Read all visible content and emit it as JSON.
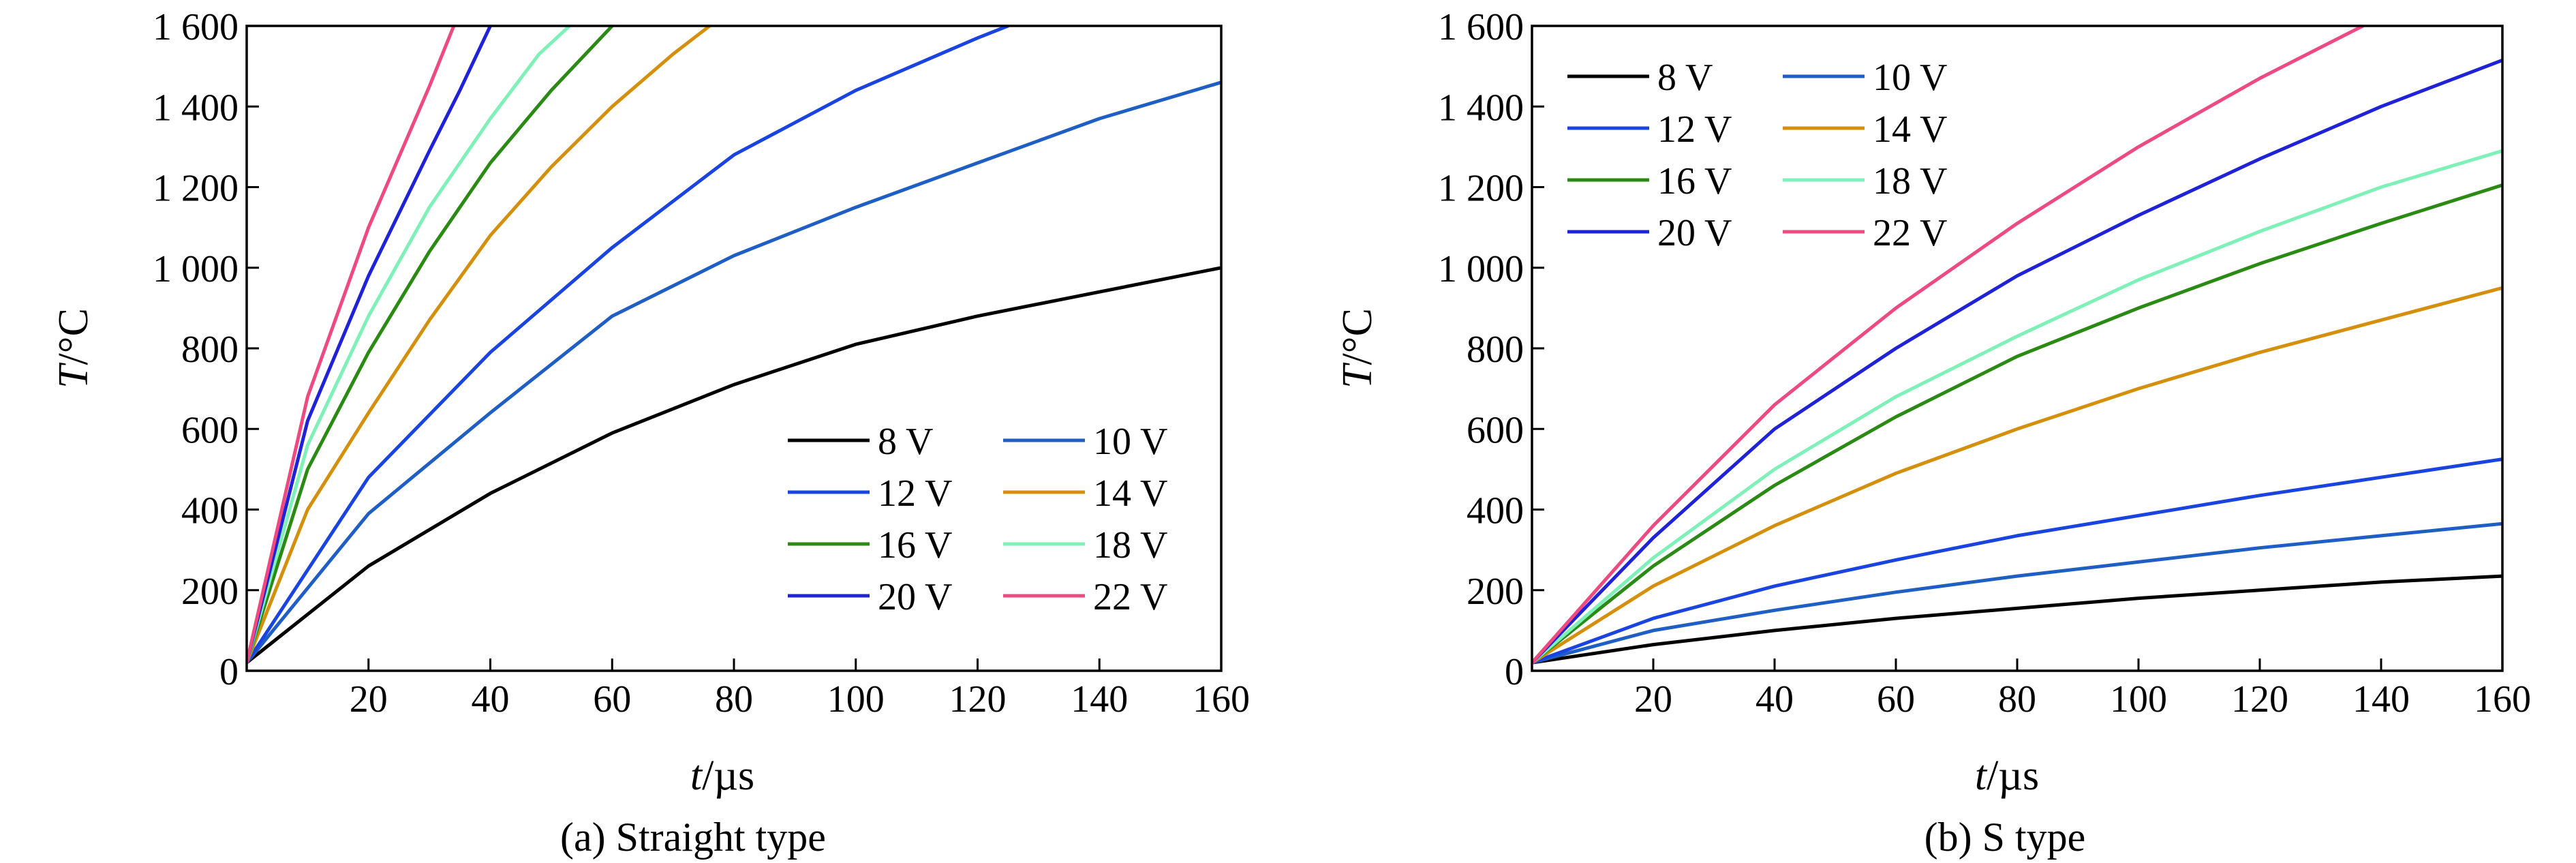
{
  "chart_data": [
    {
      "type": "line",
      "caption": "(a) Straight type",
      "ylabel": "T/°C",
      "ylabel_var": "T",
      "ylabel_unit": "/°C",
      "xlabel": "t/µs",
      "xlabel_var": "t",
      "xlabel_unit": "/µs",
      "xlim": [
        0,
        160
      ],
      "ylim": [
        0,
        1600
      ],
      "xticks": [
        20,
        40,
        60,
        80,
        100,
        120,
        140,
        160
      ],
      "yticks": [
        0,
        200,
        400,
        600,
        800,
        1000,
        1200,
        1400,
        1600
      ],
      "xtick_labels": [
        "20",
        "40",
        "60",
        "80",
        "100",
        "120",
        "140",
        "160"
      ],
      "ytick_labels": [
        "0",
        "200",
        "400",
        "600",
        "800",
        "1 000",
        "1 200",
        "1 400",
        "1 600"
      ],
      "legend_position": "lower-right",
      "series": [
        {
          "name": "8 V",
          "color": "#000000",
          "x": [
            0,
            20,
            40,
            60,
            80,
            100,
            120,
            140,
            160
          ],
          "y": [
            20,
            260,
            440,
            590,
            710,
            810,
            880,
            940,
            1000
          ]
        },
        {
          "name": "10 V",
          "color": "#1f5fc4",
          "x": [
            0,
            20,
            40,
            60,
            80,
            100,
            120,
            140,
            160
          ],
          "y": [
            20,
            390,
            640,
            880,
            1030,
            1150,
            1260,
            1370,
            1460
          ]
        },
        {
          "name": "12 V",
          "color": "#1a44e0",
          "x": [
            0,
            20,
            40,
            60,
            80,
            100,
            120,
            125
          ],
          "y": [
            20,
            480,
            790,
            1050,
            1280,
            1440,
            1570,
            1600
          ]
        },
        {
          "name": "14 V",
          "color": "#d4900d",
          "x": [
            0,
            10,
            20,
            30,
            40,
            50,
            60,
            70,
            76
          ],
          "y": [
            20,
            400,
            640,
            870,
            1080,
            1250,
            1400,
            1530,
            1600
          ]
        },
        {
          "name": "16 V",
          "color": "#2a8a14",
          "x": [
            0,
            10,
            20,
            30,
            40,
            50,
            60
          ],
          "y": [
            20,
            500,
            790,
            1040,
            1260,
            1440,
            1600
          ]
        },
        {
          "name": "18 V",
          "color": "#7ff0b8",
          "x": [
            0,
            10,
            20,
            30,
            40,
            48,
            53
          ],
          "y": [
            20,
            560,
            880,
            1150,
            1370,
            1530,
            1600
          ]
        },
        {
          "name": "20 V",
          "color": "#1f22d6",
          "x": [
            0,
            10,
            20,
            30,
            35,
            40
          ],
          "y": [
            20,
            620,
            980,
            1290,
            1440,
            1600
          ]
        },
        {
          "name": "22 V",
          "color": "#ec4a80",
          "x": [
            0,
            10,
            20,
            30,
            34
          ],
          "y": [
            20,
            680,
            1100,
            1450,
            1600
          ]
        }
      ]
    },
    {
      "type": "line",
      "caption": "(b) S type",
      "ylabel": "T/°C",
      "ylabel_var": "T",
      "ylabel_unit": "/°C",
      "xlabel": "t/µs",
      "xlabel_var": "t",
      "xlabel_unit": "/µs",
      "xlim": [
        0,
        160
      ],
      "ylim": [
        0,
        1600
      ],
      "xticks": [
        20,
        40,
        60,
        80,
        100,
        120,
        140,
        160
      ],
      "yticks": [
        0,
        200,
        400,
        600,
        800,
        1000,
        1200,
        1400,
        1600
      ],
      "xtick_labels": [
        "20",
        "40",
        "60",
        "80",
        "100",
        "120",
        "140",
        "160"
      ],
      "ytick_labels": [
        "0",
        "200",
        "400",
        "600",
        "800",
        "1 000",
        "1 200",
        "1 400",
        "1 600"
      ],
      "legend_position": "top-left",
      "series": [
        {
          "name": "8 V",
          "color": "#000000",
          "x": [
            0,
            20,
            40,
            60,
            80,
            100,
            120,
            140,
            160
          ],
          "y": [
            20,
            65,
            100,
            130,
            155,
            180,
            200,
            220,
            235
          ]
        },
        {
          "name": "10 V",
          "color": "#1f5fc4",
          "x": [
            0,
            20,
            40,
            60,
            80,
            100,
            120,
            140,
            160
          ],
          "y": [
            20,
            100,
            150,
            195,
            235,
            270,
            305,
            335,
            365
          ]
        },
        {
          "name": "12 V",
          "color": "#1a44e0",
          "x": [
            0,
            20,
            40,
            60,
            80,
            100,
            120,
            140,
            160
          ],
          "y": [
            20,
            130,
            210,
            275,
            335,
            385,
            435,
            480,
            525
          ]
        },
        {
          "name": "14 V",
          "color": "#d4900d",
          "x": [
            0,
            20,
            40,
            60,
            80,
            100,
            120,
            140,
            160
          ],
          "y": [
            20,
            210,
            360,
            490,
            600,
            700,
            790,
            870,
            950
          ]
        },
        {
          "name": "16 V",
          "color": "#2a8a14",
          "x": [
            0,
            20,
            40,
            60,
            80,
            100,
            120,
            140,
            160
          ],
          "y": [
            20,
            260,
            460,
            630,
            780,
            900,
            1010,
            1110,
            1205
          ]
        },
        {
          "name": "18 V",
          "color": "#7ff0b8",
          "x": [
            0,
            20,
            40,
            60,
            80,
            100,
            120,
            140,
            160
          ],
          "y": [
            20,
            280,
            500,
            680,
            830,
            970,
            1090,
            1200,
            1290
          ]
        },
        {
          "name": "20 V",
          "color": "#1f22d6",
          "x": [
            0,
            20,
            40,
            60,
            80,
            100,
            120,
            140,
            160
          ],
          "y": [
            20,
            330,
            600,
            800,
            980,
            1130,
            1270,
            1400,
            1515
          ]
        },
        {
          "name": "22 V",
          "color": "#ec4a80",
          "x": [
            0,
            20,
            40,
            60,
            80,
            100,
            120,
            137
          ],
          "y": [
            20,
            360,
            660,
            900,
            1110,
            1300,
            1470,
            1600
          ]
        }
      ]
    }
  ]
}
